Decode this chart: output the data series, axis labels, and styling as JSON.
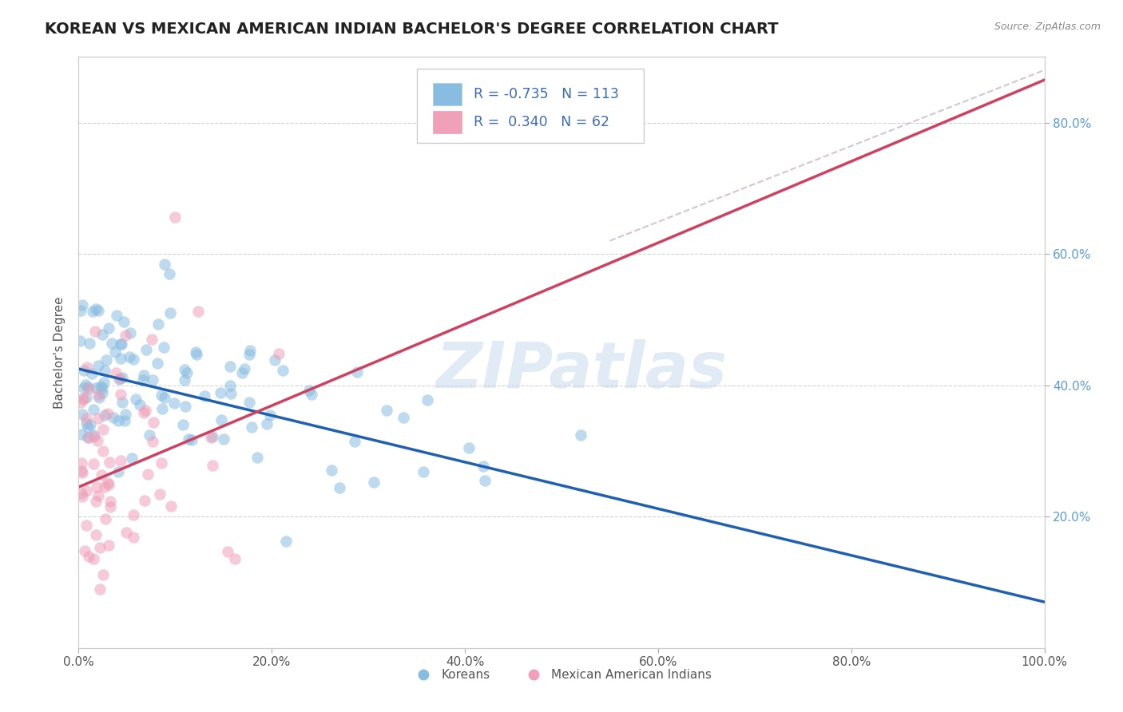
{
  "title": "KOREAN VS MEXICAN AMERICAN INDIAN BACHELOR'S DEGREE CORRELATION CHART",
  "source_text": "Source: ZipAtlas.com",
  "ylabel": "Bachelor's Degree",
  "watermark": "ZIPatlas",
  "xlim": [
    0.0,
    1.0
  ],
  "ylim": [
    0.0,
    0.9
  ],
  "xtick_vals": [
    0.0,
    0.2,
    0.4,
    0.6,
    0.8,
    1.0
  ],
  "xtick_labels": [
    "0.0%",
    "20.0%",
    "40.0%",
    "60.0%",
    "80.0%",
    "100.0%"
  ],
  "ytick_vals": [
    0.2,
    0.4,
    0.6,
    0.8
  ],
  "ytick_labels": [
    "20.0%",
    "40.0%",
    "60.0%",
    "80.0%"
  ],
  "blue_R": -0.735,
  "blue_N": 113,
  "pink_R": 0.34,
  "pink_N": 62,
  "legend_label_blue": "Koreans",
  "legend_label_pink": "Mexican American Indians",
  "blue_color": "#88bce0",
  "pink_color": "#f0a0b8",
  "blue_line_color": "#2060b0",
  "pink_line_color": "#d04060",
  "ref_line_color": "#ccbbcc",
  "title_fontsize": 14,
  "axis_label_fontsize": 11,
  "tick_fontsize": 11,
  "bg_color": "#ffffff",
  "grid_color": "#cccccc",
  "blue_intercept": 0.425,
  "blue_slope": -0.355,
  "pink_intercept": 0.245,
  "pink_slope": 0.62
}
